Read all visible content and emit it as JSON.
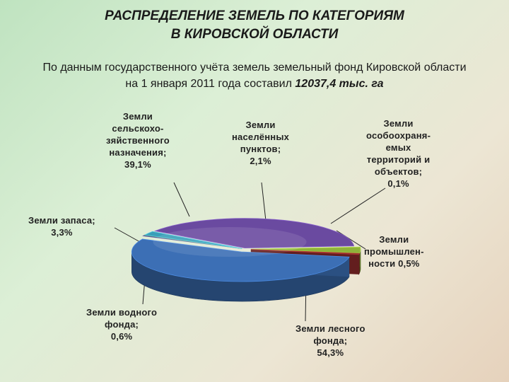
{
  "header": {
    "title_line1": "РАСПРЕДЕЛЕНИЕ ЗЕМЕЛЬ ПО КАТЕГОРИЯМ",
    "title_line2": "В КИРОВСКОЙ ОБЛАСТИ",
    "subtitle_line1": "По данным государственного учёта земель земельный фонд Кировской области",
    "subtitle_line2_prefix": "на 1 января 2011 года составил ",
    "subtitle_total": "12037,4 тыс. га"
  },
  "chart_data": {
    "type": "pie",
    "style": "3d-exploded",
    "slices": [
      {
        "key": "forest",
        "label_lines": [
          "Земли лесного",
          "фонда;",
          "54,3%"
        ],
        "value": 54.3,
        "color": "#3c6fb5"
      },
      {
        "key": "industry",
        "label_lines": [
          "Земли",
          "промышлен-",
          "ности 0,5%"
        ],
        "value": 0.5,
        "color": "#4a4f8a"
      },
      {
        "key": "protected",
        "label_lines": [
          "Земли",
          "особоохраня-",
          "емых",
          "территорий и",
          "объектов;",
          "0,1%"
        ],
        "value": 0.1,
        "color": "#7aa33a"
      },
      {
        "key": "settlements",
        "label_lines": [
          "Земли",
          "населённых",
          "пунктов;",
          "2,1%"
        ],
        "value": 2.1,
        "color": "#3a9fb8"
      },
      {
        "key": "agriculture",
        "label_lines": [
          "Земли",
          "сельскохо-",
          "зяйственного",
          "назначения;",
          "39,1%"
        ],
        "value": 39.1,
        "color": "#6a4aa0"
      },
      {
        "key": "reserve",
        "label_lines": [
          "Земли запаса;",
          "3,3%"
        ],
        "value": 3.3,
        "color": "#8fb33a"
      },
      {
        "key": "water",
        "label_lines": [
          "Земли водного",
          "фонда;",
          "0,6%"
        ],
        "value": 0.6,
        "color": "#8a2a2a"
      }
    ]
  }
}
